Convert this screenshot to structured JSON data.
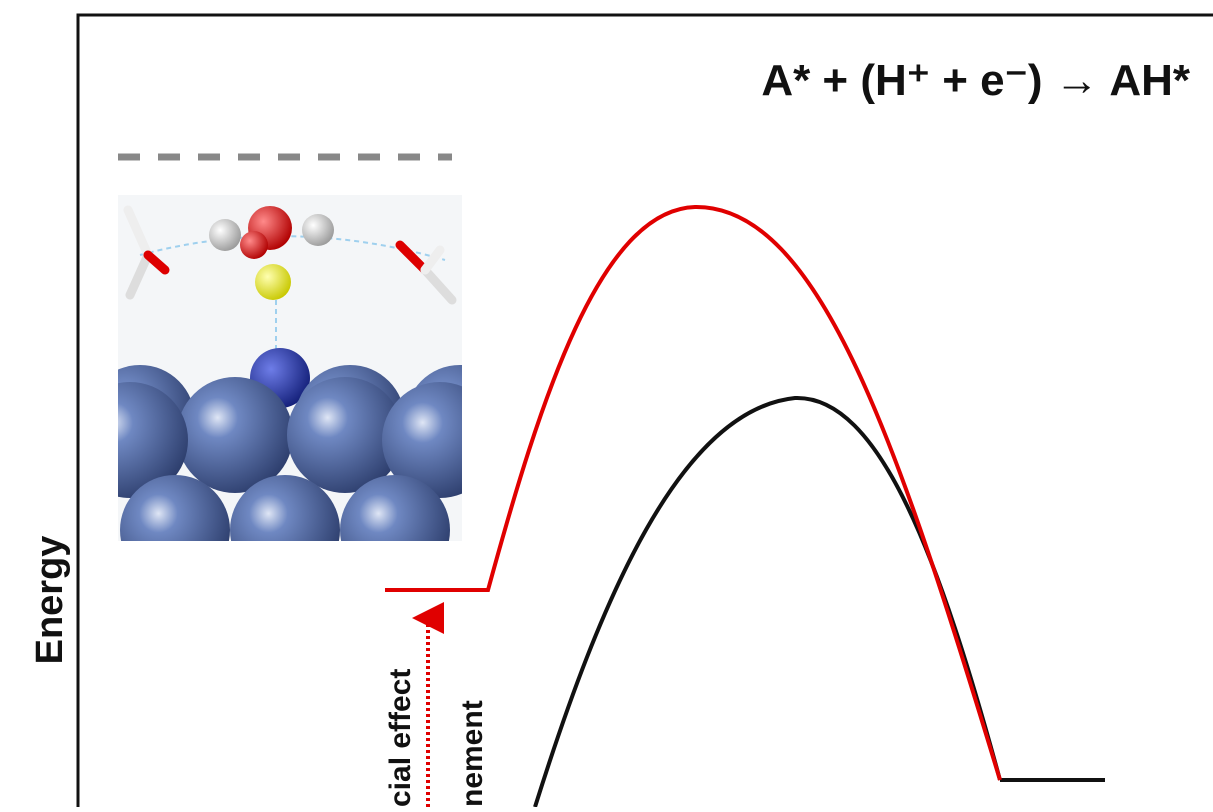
{
  "title": "A* + (H⁺ + e⁻) → AH*",
  "axis_label": "Energy",
  "annotations": [
    "cial effect",
    "nement"
  ]
}
